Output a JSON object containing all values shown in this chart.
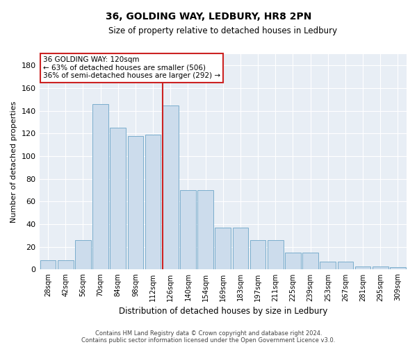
{
  "title": "36, GOLDING WAY, LEDBURY, HR8 2PN",
  "subtitle": "Size of property relative to detached houses in Ledbury",
  "xlabel": "Distribution of detached houses by size in Ledbury",
  "ylabel": "Number of detached properties",
  "categories": [
    "28sqm",
    "42sqm",
    "56sqm",
    "70sqm",
    "84sqm",
    "98sqm",
    "112sqm",
    "126sqm",
    "140sqm",
    "154sqm",
    "169sqm",
    "183sqm",
    "197sqm",
    "211sqm",
    "225sqm",
    "239sqm",
    "253sqm",
    "267sqm",
    "281sqm",
    "295sqm",
    "309sqm"
  ],
  "bar_heights": [
    8,
    8,
    26,
    146,
    125,
    118,
    119,
    145,
    70,
    70,
    37,
    37,
    26,
    26,
    15,
    15,
    7,
    7,
    3,
    3,
    2
  ],
  "bar_color": "#ccdcec",
  "bar_edge_color": "#7aadcc",
  "vline_color": "#cc2222",
  "annotation_text": "36 GOLDING WAY: 120sqm\n← 63% of detached houses are smaller (506)\n36% of semi-detached houses are larger (292) →",
  "annotation_box_color": "#ffffff",
  "annotation_box_edge": "#cc2222",
  "ylim": [
    0,
    190
  ],
  "yticks": [
    0,
    20,
    40,
    60,
    80,
    100,
    120,
    140,
    160,
    180
  ],
  "bg_color": "#e8eef5",
  "grid_color": "#c8d4e0",
  "footer1": "Contains HM Land Registry data © Crown copyright and database right 2024.",
  "footer2": "Contains public sector information licensed under the Open Government Licence v3.0."
}
